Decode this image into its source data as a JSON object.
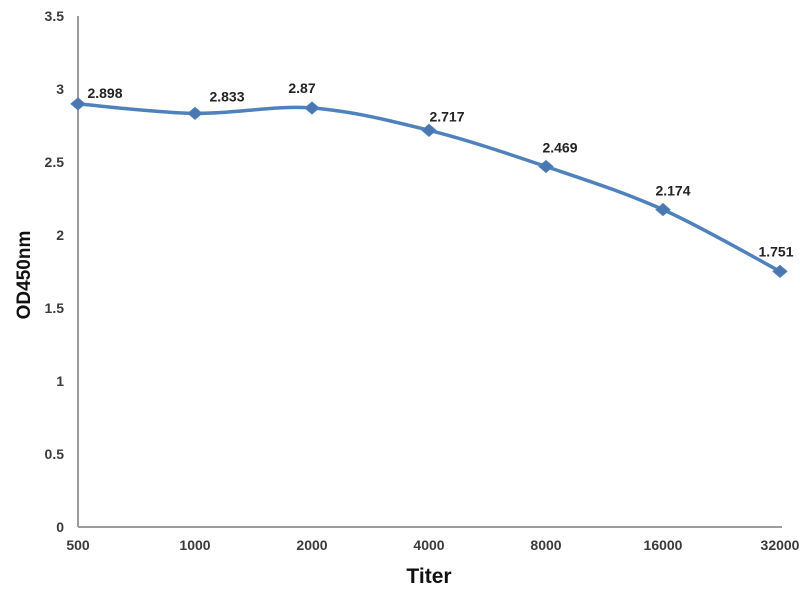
{
  "chart_data": {
    "type": "line",
    "title": "",
    "xlabel": "Titer",
    "ylabel": "OD450nm",
    "categories": [
      "500",
      "1000",
      "2000",
      "4000",
      "8000",
      "16000",
      "32000"
    ],
    "values": [
      2.898,
      2.833,
      2.87,
      2.717,
      2.469,
      2.174,
      1.751
    ],
    "data_labels": [
      "2.898",
      "2.833",
      "2.87",
      "2.717",
      "2.469",
      "2.174",
      "1.751"
    ],
    "series": [
      {
        "name": "OD450nm",
        "values": [
          2.898,
          2.833,
          2.87,
          2.717,
          2.469,
          2.174,
          1.751
        ]
      }
    ],
    "yticks": [
      "0",
      "0.5",
      "1",
      "1.5",
      "2",
      "2.5",
      "3",
      "3.5"
    ],
    "ylim": [
      0,
      3.5
    ],
    "grid": false,
    "legend": "none",
    "line_color": "#4F81BD",
    "marker": "diamond",
    "marker_color": "#4A77B0",
    "axis_color": "#9C9C9C",
    "tick_label_color": "#3A3A3A",
    "data_label_color": "#222222",
    "label_dx": [
      27,
      32,
      -10,
      18,
      14,
      10,
      -4
    ],
    "label_dy": [
      -6,
      -12,
      -15,
      -9,
      -14,
      -14,
      -15
    ]
  }
}
